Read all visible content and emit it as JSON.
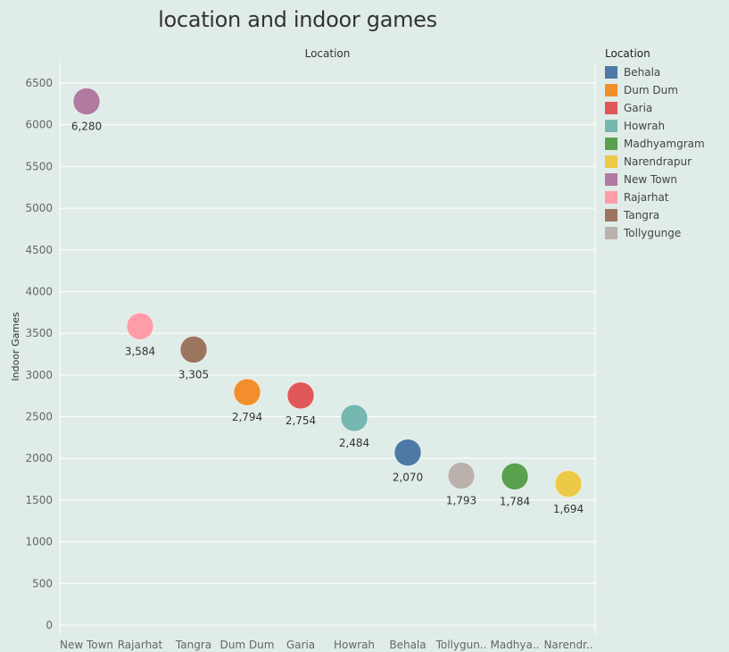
{
  "chart_data": {
    "type": "scatter",
    "title": "location and indoor games",
    "header": "Location",
    "ylabel": "Indoor Games",
    "ylim": [
      0,
      6500
    ],
    "yticks": [
      0,
      500,
      1000,
      1500,
      2000,
      2500,
      3000,
      3500,
      4000,
      4500,
      5000,
      5500,
      6000,
      6500
    ],
    "categories": [
      "New Town",
      "Rajarhat",
      "Tangra",
      "Dum Dum",
      "Garia",
      "Howrah",
      "Behala",
      "Tollygun..",
      "Madhya..",
      "Narendr.."
    ],
    "full_categories": [
      "New Town",
      "Rajarhat",
      "Tangra",
      "Dum Dum",
      "Garia",
      "Howrah",
      "Behala",
      "Tollygunge",
      "Madhyamgram",
      "Narendrapur"
    ],
    "values": [
      6280,
      3584,
      3305,
      2794,
      2754,
      2484,
      2070,
      1793,
      1784,
      1694
    ],
    "value_labels": [
      "6,280",
      "3,584",
      "3,305",
      "2,794",
      "2,754",
      "2,484",
      "2,070",
      "1,793",
      "1,784",
      "1,694"
    ],
    "grid": true
  },
  "legend": {
    "title": "Location",
    "placement": "right",
    "items": [
      {
        "label": "Behala",
        "color": "#4e79a7"
      },
      {
        "label": "Dum Dum",
        "color": "#f28e2b"
      },
      {
        "label": "Garia",
        "color": "#e15759"
      },
      {
        "label": "Howrah",
        "color": "#76b7b2"
      },
      {
        "label": "Madhyamgram",
        "color": "#59a14f"
      },
      {
        "label": "Narendrapur",
        "color": "#edc948"
      },
      {
        "label": "New Town",
        "color": "#b07aa1"
      },
      {
        "label": "Rajarhat",
        "color": "#ff9da7"
      },
      {
        "label": "Tangra",
        "color": "#9c755f"
      },
      {
        "label": "Tollygunge",
        "color": "#bab0ac"
      }
    ]
  }
}
